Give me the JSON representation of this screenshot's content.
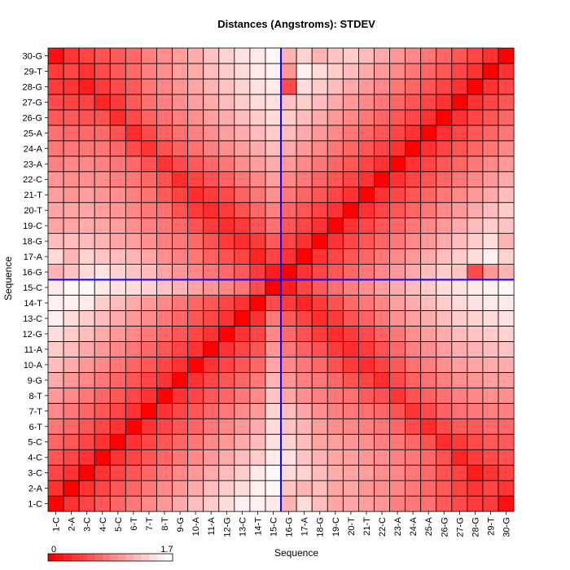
{
  "chart_data": {
    "type": "heatmap",
    "title": "Distances (Angstroms):  STDEV",
    "xlabel": "Sequence",
    "ylabel": "Sequence",
    "labels": [
      "1-C",
      "2-A",
      "3-C",
      "4-C",
      "5-C",
      "6-T",
      "7-T",
      "8-T",
      "9-G",
      "10-A",
      "11-A",
      "12-G",
      "13-C",
      "14-T",
      "15-C",
      "16-G",
      "17-A",
      "18-G",
      "19-C",
      "20-T",
      "21-T",
      "22-C",
      "23-A",
      "24-A",
      "25-A",
      "26-G",
      "27-G",
      "28-G",
      "29-T",
      "30-G"
    ],
    "colorbar": {
      "min_label": "0",
      "max_label": "1.7",
      "min": 0,
      "max": 1.7,
      "low_color": "#ff0000",
      "high_color": "#ffffff"
    },
    "highlight": {
      "row": "15-C",
      "col": "15-C",
      "color": "#0000ff"
    },
    "values": [
      [
        0.0,
        0.34,
        0.46,
        0.57,
        0.68,
        0.79,
        0.91,
        1.02,
        1.13,
        1.25,
        1.36,
        1.47,
        1.59,
        1.6,
        1.55,
        1.2,
        1.45,
        1.25,
        1.1,
        1.1,
        1.05,
        1.0,
        0.85,
        0.8,
        0.75,
        0.6,
        0.5,
        0.4,
        0.4,
        0.1
      ],
      [
        0.34,
        0.0,
        0.34,
        0.46,
        0.57,
        0.68,
        0.79,
        0.91,
        1.02,
        1.13,
        1.25,
        1.36,
        1.47,
        1.59,
        1.65,
        1.3,
        1.2,
        1.25,
        1.1,
        1.1,
        1.0,
        0.95,
        0.9,
        0.8,
        0.7,
        0.6,
        0.45,
        0.35,
        0.45,
        0.35
      ],
      [
        0.46,
        0.34,
        0.0,
        0.34,
        0.46,
        0.57,
        0.68,
        0.79,
        0.91,
        1.02,
        1.13,
        1.25,
        1.36,
        1.55,
        1.65,
        1.45,
        1.4,
        1.25,
        1.15,
        1.1,
        1.05,
        0.95,
        0.9,
        0.8,
        0.7,
        0.55,
        0.45,
        0.2,
        0.35,
        0.45
      ],
      [
        0.57,
        0.46,
        0.34,
        0.0,
        0.34,
        0.46,
        0.57,
        0.68,
        0.79,
        0.91,
        1.02,
        1.13,
        1.25,
        1.36,
        1.55,
        1.5,
        1.3,
        1.2,
        1.1,
        1.05,
        1.0,
        0.95,
        0.85,
        0.8,
        0.7,
        0.55,
        0.25,
        0.4,
        0.5,
        0.55
      ],
      [
        0.68,
        0.57,
        0.46,
        0.34,
        0.0,
        0.34,
        0.46,
        0.57,
        0.68,
        0.79,
        0.91,
        1.02,
        1.13,
        1.25,
        1.5,
        1.4,
        1.25,
        1.1,
        1.05,
        1.0,
        0.95,
        0.85,
        0.8,
        0.7,
        0.55,
        0.3,
        0.4,
        0.5,
        0.6,
        0.6
      ],
      [
        0.79,
        0.68,
        0.57,
        0.46,
        0.34,
        0.0,
        0.34,
        0.46,
        0.57,
        0.68,
        0.79,
        0.91,
        1.02,
        1.13,
        1.45,
        1.3,
        1.2,
        1.05,
        0.95,
        0.9,
        0.85,
        0.8,
        0.7,
        0.5,
        0.3,
        0.5,
        0.6,
        0.6,
        0.7,
        0.7
      ],
      [
        0.91,
        0.79,
        0.68,
        0.57,
        0.46,
        0.34,
        0.0,
        0.34,
        0.46,
        0.57,
        0.68,
        0.79,
        0.91,
        1.02,
        1.4,
        1.25,
        1.1,
        0.95,
        0.85,
        0.8,
        0.75,
        0.7,
        0.55,
        0.35,
        0.5,
        0.65,
        0.75,
        0.8,
        0.85,
        0.85
      ],
      [
        1.02,
        0.91,
        0.79,
        0.68,
        0.57,
        0.46,
        0.34,
        0.0,
        0.34,
        0.46,
        0.57,
        0.68,
        0.79,
        0.91,
        1.3,
        1.1,
        0.95,
        0.85,
        0.8,
        0.75,
        0.6,
        0.55,
        0.35,
        0.55,
        0.65,
        0.75,
        0.85,
        0.9,
        0.95,
        0.95
      ],
      [
        1.13,
        1.02,
        0.91,
        0.79,
        0.68,
        0.57,
        0.46,
        0.34,
        0.0,
        0.34,
        0.46,
        0.57,
        0.68,
        0.79,
        1.2,
        1.0,
        0.85,
        0.8,
        0.7,
        0.55,
        0.45,
        0.3,
        0.5,
        0.65,
        0.75,
        0.85,
        0.95,
        1.0,
        1.05,
        1.05
      ],
      [
        1.25,
        1.13,
        1.02,
        0.91,
        0.79,
        0.68,
        0.57,
        0.46,
        0.34,
        0.0,
        0.34,
        0.46,
        0.57,
        0.68,
        1.1,
        0.9,
        0.8,
        0.7,
        0.55,
        0.4,
        0.3,
        0.45,
        0.6,
        0.75,
        0.85,
        0.95,
        1.05,
        1.1,
        1.15,
        1.15
      ],
      [
        1.36,
        1.25,
        1.13,
        1.02,
        0.91,
        0.79,
        0.68,
        0.57,
        0.46,
        0.34,
        0.0,
        0.34,
        0.46,
        0.57,
        1.0,
        0.8,
        0.65,
        0.55,
        0.4,
        0.3,
        0.4,
        0.55,
        0.7,
        0.85,
        0.95,
        1.05,
        1.15,
        1.2,
        1.25,
        1.3
      ],
      [
        1.47,
        1.36,
        1.25,
        1.13,
        1.02,
        0.91,
        0.79,
        0.68,
        0.57,
        0.46,
        0.34,
        0.0,
        0.34,
        0.46,
        0.9,
        0.7,
        0.55,
        0.4,
        0.3,
        0.4,
        0.5,
        0.65,
        0.8,
        0.95,
        1.05,
        1.15,
        1.25,
        1.3,
        1.35,
        1.4
      ],
      [
        1.59,
        1.47,
        1.36,
        1.25,
        1.13,
        1.02,
        0.91,
        0.79,
        0.68,
        0.57,
        0.46,
        0.34,
        0.0,
        0.34,
        0.8,
        0.6,
        0.45,
        0.3,
        0.4,
        0.55,
        0.65,
        0.8,
        0.95,
        1.05,
        1.15,
        1.25,
        1.35,
        1.4,
        1.45,
        1.5
      ],
      [
        1.6,
        1.59,
        1.55,
        1.36,
        1.25,
        1.13,
        1.02,
        0.91,
        0.79,
        0.68,
        0.57,
        0.46,
        0.34,
        0.0,
        0.5,
        0.4,
        0.25,
        0.4,
        0.55,
        0.7,
        0.8,
        0.9,
        1.05,
        1.15,
        1.25,
        1.35,
        1.45,
        1.5,
        1.55,
        1.55
      ],
      [
        1.55,
        1.65,
        1.65,
        1.55,
        1.5,
        1.45,
        1.4,
        1.3,
        1.2,
        1.1,
        1.0,
        0.9,
        0.8,
        0.5,
        0.0,
        0.2,
        0.45,
        0.6,
        0.75,
        0.85,
        0.95,
        1.05,
        1.15,
        1.25,
        1.35,
        1.45,
        1.5,
        1.55,
        1.6,
        1.65
      ],
      [
        1.2,
        1.3,
        1.45,
        1.5,
        1.4,
        1.3,
        1.25,
        1.1,
        1.0,
        0.9,
        0.8,
        0.7,
        0.6,
        0.4,
        0.2,
        0.0,
        0.34,
        0.46,
        0.57,
        0.68,
        0.79,
        0.91,
        1.02,
        1.13,
        1.25,
        1.36,
        1.3,
        0.5,
        1.0,
        1.2
      ],
      [
        1.45,
        1.2,
        1.4,
        1.3,
        1.25,
        1.2,
        1.1,
        0.95,
        0.85,
        0.8,
        0.65,
        0.55,
        0.45,
        0.25,
        0.45,
        0.34,
        0.0,
        0.34,
        0.46,
        0.57,
        0.68,
        0.79,
        0.91,
        1.02,
        1.13,
        1.25,
        1.36,
        1.47,
        1.59,
        1.4
      ],
      [
        1.25,
        1.25,
        1.25,
        1.2,
        1.1,
        1.05,
        0.95,
        0.85,
        0.8,
        0.7,
        0.55,
        0.4,
        0.3,
        0.4,
        0.6,
        0.46,
        0.34,
        0.0,
        0.34,
        0.46,
        0.57,
        0.68,
        0.79,
        0.91,
        1.02,
        1.13,
        1.25,
        1.36,
        1.47,
        1.2
      ],
      [
        1.1,
        1.1,
        1.15,
        1.1,
        1.05,
        0.95,
        0.85,
        0.8,
        0.7,
        0.55,
        0.4,
        0.3,
        0.4,
        0.55,
        0.75,
        0.57,
        0.46,
        0.34,
        0.0,
        0.34,
        0.46,
        0.57,
        0.68,
        0.79,
        0.91,
        1.02,
        1.13,
        1.25,
        1.36,
        1.3
      ],
      [
        1.1,
        1.1,
        1.1,
        1.05,
        1.0,
        0.9,
        0.8,
        0.75,
        0.55,
        0.4,
        0.3,
        0.4,
        0.55,
        0.7,
        0.85,
        0.68,
        0.57,
        0.46,
        0.34,
        0.0,
        0.34,
        0.46,
        0.57,
        0.68,
        0.79,
        0.91,
        1.02,
        1.13,
        1.25,
        1.35
      ],
      [
        1.05,
        1.0,
        1.05,
        1.0,
        0.95,
        0.85,
        0.75,
        0.6,
        0.45,
        0.3,
        0.4,
        0.5,
        0.65,
        0.8,
        0.95,
        0.79,
        0.68,
        0.57,
        0.46,
        0.34,
        0.0,
        0.34,
        0.46,
        0.57,
        0.68,
        0.79,
        0.91,
        1.02,
        1.13,
        1.25
      ],
      [
        1.0,
        0.95,
        0.95,
        0.95,
        0.85,
        0.8,
        0.7,
        0.55,
        0.3,
        0.45,
        0.55,
        0.65,
        0.8,
        0.9,
        1.05,
        0.91,
        0.79,
        0.68,
        0.57,
        0.46,
        0.34,
        0.0,
        0.34,
        0.46,
        0.57,
        0.68,
        0.79,
        0.91,
        1.02,
        1.13
      ],
      [
        0.85,
        0.9,
        0.9,
        0.85,
        0.8,
        0.7,
        0.55,
        0.35,
        0.5,
        0.6,
        0.7,
        0.8,
        0.95,
        1.05,
        1.15,
        1.02,
        0.91,
        0.79,
        0.68,
        0.57,
        0.46,
        0.34,
        0.0,
        0.34,
        0.46,
        0.57,
        0.68,
        0.79,
        0.91,
        1.02
      ],
      [
        0.8,
        0.8,
        0.8,
        0.8,
        0.7,
        0.5,
        0.35,
        0.55,
        0.65,
        0.75,
        0.85,
        0.95,
        1.05,
        1.15,
        1.25,
        1.13,
        1.02,
        0.91,
        0.79,
        0.68,
        0.57,
        0.46,
        0.34,
        0.0,
        0.34,
        0.46,
        0.57,
        0.68,
        0.79,
        0.91
      ],
      [
        0.75,
        0.7,
        0.7,
        0.7,
        0.55,
        0.3,
        0.5,
        0.65,
        0.75,
        0.85,
        0.95,
        1.05,
        1.15,
        1.25,
        1.35,
        1.25,
        1.13,
        1.02,
        0.91,
        0.79,
        0.68,
        0.57,
        0.46,
        0.34,
        0.0,
        0.34,
        0.46,
        0.57,
        0.68,
        0.79
      ],
      [
        0.6,
        0.6,
        0.55,
        0.55,
        0.3,
        0.5,
        0.65,
        0.75,
        0.85,
        0.95,
        1.05,
        1.15,
        1.25,
        1.35,
        1.45,
        1.36,
        1.25,
        1.13,
        1.02,
        0.91,
        0.79,
        0.68,
        0.57,
        0.46,
        0.34,
        0.0,
        0.34,
        0.46,
        0.57,
        0.68
      ],
      [
        0.5,
        0.45,
        0.45,
        0.25,
        0.4,
        0.6,
        0.75,
        0.85,
        0.95,
        1.05,
        1.15,
        1.25,
        1.35,
        1.45,
        1.5,
        1.3,
        1.36,
        1.25,
        1.13,
        1.02,
        0.91,
        0.79,
        0.68,
        0.57,
        0.46,
        0.34,
        0.0,
        0.34,
        0.46,
        0.57
      ],
      [
        0.4,
        0.35,
        0.2,
        0.4,
        0.5,
        0.6,
        0.8,
        0.9,
        1.0,
        1.1,
        1.2,
        1.3,
        1.4,
        1.5,
        1.55,
        0.5,
        1.47,
        1.36,
        1.25,
        1.13,
        1.02,
        0.91,
        0.79,
        0.68,
        0.57,
        0.46,
        0.34,
        0.0,
        0.34,
        0.46
      ],
      [
        0.4,
        0.45,
        0.35,
        0.5,
        0.6,
        0.7,
        0.85,
        0.95,
        1.05,
        1.15,
        1.25,
        1.35,
        1.45,
        1.55,
        1.6,
        1.0,
        1.59,
        1.47,
        1.36,
        1.25,
        1.13,
        1.02,
        0.91,
        0.79,
        0.68,
        0.57,
        0.46,
        0.34,
        0.0,
        0.34
      ],
      [
        0.1,
        0.35,
        0.45,
        0.55,
        0.6,
        0.7,
        0.85,
        0.95,
        1.05,
        1.15,
        1.3,
        1.4,
        1.5,
        1.55,
        1.65,
        1.2,
        1.4,
        1.2,
        1.3,
        1.35,
        1.25,
        1.13,
        1.02,
        0.91,
        0.79,
        0.68,
        0.57,
        0.46,
        0.34,
        0.0
      ]
    ]
  }
}
